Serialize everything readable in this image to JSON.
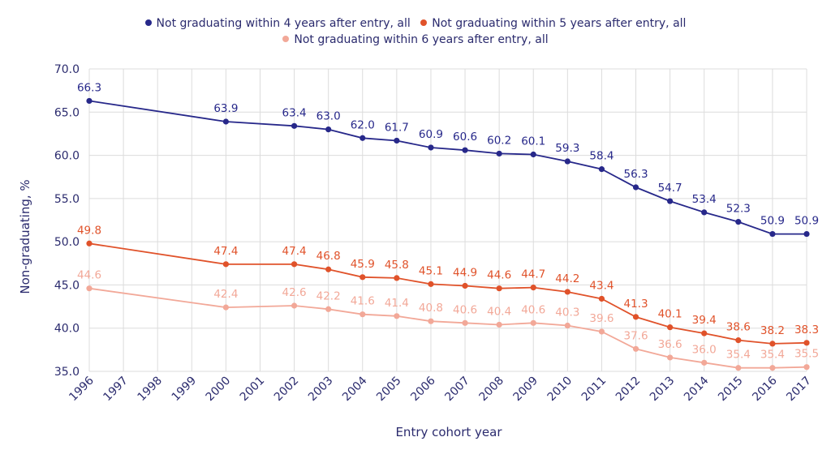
{
  "chart_data": {
    "type": "line",
    "title": "",
    "xlabel": "Entry cohort year",
    "ylabel": "Non-graduating, %",
    "x": [
      1996,
      2000,
      2002,
      2003,
      2004,
      2005,
      2006,
      2007,
      2008,
      2009,
      2010,
      2011,
      2012,
      2013,
      2014,
      2015,
      2016,
      2017
    ],
    "x_ticks": [
      "1996",
      "1997",
      "1998",
      "1999",
      "2000",
      "2001",
      "2002",
      "2003",
      "2004",
      "2005",
      "2006",
      "2007",
      "2008",
      "2009",
      "2010",
      "2011",
      "2012",
      "2013",
      "2014",
      "2015",
      "2016",
      "2017"
    ],
    "y_ticks": [
      "35.0",
      "40.0",
      "45.0",
      "50.0",
      "55.0",
      "60.0",
      "65.0",
      "70.0"
    ],
    "xlim": [
      1996,
      2017
    ],
    "ylim": [
      35,
      70
    ],
    "grid": true,
    "legend_position": "top",
    "series": [
      {
        "name": "Not graduating within 4 years after entry, all",
        "color": "#27288a",
        "values": [
          66.3,
          63.9,
          63.4,
          63.0,
          62.0,
          61.7,
          60.9,
          60.6,
          60.2,
          60.1,
          59.3,
          58.4,
          56.3,
          54.7,
          53.4,
          52.3,
          50.9,
          50.9
        ],
        "labels": [
          "66.3",
          "63.9",
          "63.4",
          "63.0",
          "62.0",
          "61.7",
          "60.9",
          "60.6",
          "60.2",
          "60.1",
          "59.3",
          "58.4",
          "56.3",
          "54.7",
          "53.4",
          "52.3",
          "50.9",
          "50.9"
        ]
      },
      {
        "name": "Not graduating within 5 years after entry, all",
        "color": "#e0522a",
        "values": [
          49.8,
          47.4,
          47.4,
          46.8,
          45.9,
          45.8,
          45.1,
          44.9,
          44.6,
          44.7,
          44.2,
          43.4,
          41.3,
          40.1,
          39.4,
          38.6,
          38.2,
          38.3
        ],
        "labels": [
          "49.8",
          "47.4",
          "47.4",
          "46.8",
          "45.9",
          "45.8",
          "45.1",
          "44.9",
          "44.6",
          "44.7",
          "44.2",
          "43.4",
          "41.3",
          "40.1",
          "39.4",
          "38.6",
          "38.2",
          "38.3"
        ]
      },
      {
        "name": "Not graduating within 6 years after entry, all",
        "color": "#f2a898",
        "values": [
          44.6,
          42.4,
          42.6,
          42.2,
          41.6,
          41.4,
          40.8,
          40.6,
          40.4,
          40.6,
          40.3,
          39.6,
          37.6,
          36.6,
          36.0,
          35.4,
          35.4,
          35.5
        ],
        "labels": [
          "44.6",
          "42.4",
          "42.6",
          "42.2",
          "41.6",
          "41.4",
          "40.8",
          "40.6",
          "40.4",
          "40.6",
          "40.3",
          "39.6",
          "37.6",
          "36.6",
          "36.0",
          "35.4",
          "35.4",
          "35.5"
        ]
      }
    ]
  }
}
